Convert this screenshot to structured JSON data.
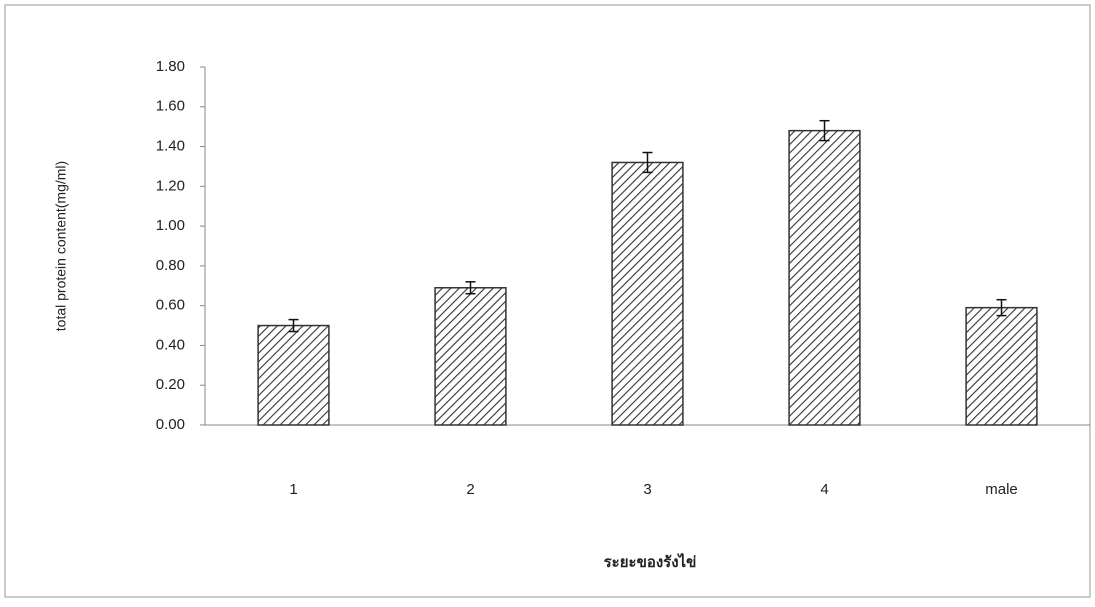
{
  "chart_data": {
    "type": "bar",
    "x_label": "ระยะของรังไข่",
    "y_label": "total protein content(mg/ml)",
    "categories": [
      "1",
      "2",
      "3",
      "4",
      "male"
    ],
    "values": [
      0.5,
      0.69,
      1.32,
      1.48,
      0.59
    ],
    "errors": [
      0.03,
      0.03,
      0.05,
      0.05,
      0.04
    ],
    "color": "#333333",
    "ylim": [
      0,
      1.8
    ],
    "yticks": [
      {
        "value": 0,
        "label": "0.00"
      },
      {
        "value": 0.2,
        "label": "0.20"
      },
      {
        "value": 0.4,
        "label": "0.40"
      },
      {
        "value": 0.6,
        "label": "0.60"
      },
      {
        "value": 0.8,
        "label": "0.80"
      },
      {
        "value": 1.0,
        "label": "1.00"
      },
      {
        "value": 1.2,
        "label": "1.20"
      },
      {
        "value": 1.4,
        "label": "1.40"
      },
      {
        "value": 1.6,
        "label": "1.60"
      },
      {
        "value": 1.8,
        "label": "1.80"
      }
    ],
    "grid": false
  }
}
